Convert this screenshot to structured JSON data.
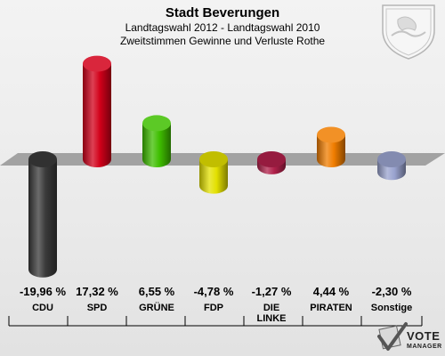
{
  "header": {
    "title": "Stadt Beverungen",
    "subtitle": "Landtagswahl 2012 - Landtagswahl 2010",
    "subtitle2": "Zweitstimmen Gewinne und Verluste Rothe"
  },
  "chart_data": {
    "type": "bar",
    "categories": [
      "CDU",
      "SPD",
      "GRÜNE",
      "FDP",
      "DIE LINKE",
      "PIRATEN",
      "Sonstige"
    ],
    "values": [
      -19.96,
      17.32,
      6.55,
      -4.78,
      -1.27,
      4.44,
      -2.3
    ],
    "labels": [
      "-19,96 %",
      "17,32 %",
      "6,55 %",
      "-4,78 %",
      "-1,27 %",
      "4,44 %",
      "-2,30 %"
    ],
    "colors": [
      "#3a3a3a",
      "#d2001a",
      "#3fbf00",
      "#e3e000",
      "#b0204a",
      "#f07d00",
      "#9aa3cf"
    ],
    "ylim": [
      -20,
      20
    ]
  },
  "logo": {
    "line1": "VOTE",
    "line2": "MANAGER"
  }
}
